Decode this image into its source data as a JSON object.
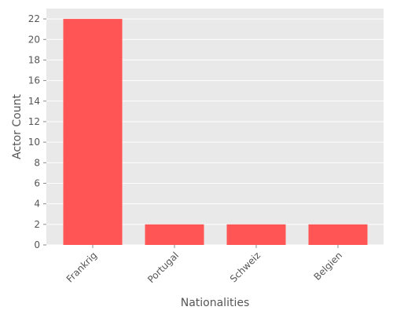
{
  "chart_data": {
    "type": "bar",
    "categories": [
      "Frankrig",
      "Portugal",
      "Schweiz",
      "Belgien"
    ],
    "values": [
      22,
      2,
      2,
      2
    ],
    "title": "",
    "xlabel": "Nationalities",
    "ylabel": "Actor Count",
    "ylim": [
      0,
      23
    ],
    "yticks": [
      0,
      2,
      4,
      6,
      8,
      10,
      12,
      14,
      16,
      18,
      20,
      22
    ],
    "grid": true,
    "bar_color": "#ff5555",
    "background_color": "#e9e9e9",
    "grid_color": "#ffffff"
  }
}
